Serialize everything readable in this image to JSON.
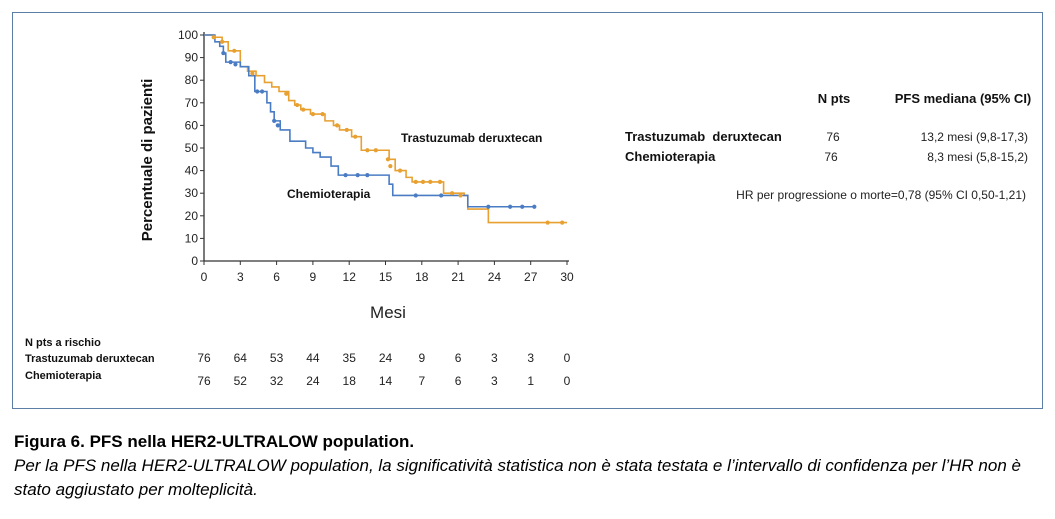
{
  "chart_data": {
    "type": "line",
    "chart_subtype": "kaplan-meier",
    "ylabel": "Percentuale di pazienti",
    "xlabel": "Mesi",
    "xlim": [
      0,
      30
    ],
    "ylim": [
      0,
      100
    ],
    "x_ticks": [
      "0",
      "3",
      "6",
      "9",
      "12",
      "15",
      "18",
      "21",
      "24",
      "27",
      "30"
    ],
    "y_ticks": [
      "0",
      "10",
      "20",
      "30",
      "40",
      "50",
      "60",
      "70",
      "80",
      "90",
      "100"
    ],
    "colors": {
      "Trastuzumab deruxtecan": "#e8a030",
      "Chemioterapia": "#4a7cc4",
      "axis": "#333333"
    },
    "series": [
      {
        "name": "Trastuzumab deruxtecan",
        "steps": [
          [
            0,
            100
          ],
          [
            0.8,
            99
          ],
          [
            1.5,
            97
          ],
          [
            2,
            93
          ],
          [
            3,
            86
          ],
          [
            3.6,
            84
          ],
          [
            4.3,
            82
          ],
          [
            5,
            79
          ],
          [
            5.6,
            77
          ],
          [
            6.2,
            75
          ],
          [
            7,
            71
          ],
          [
            7.5,
            69
          ],
          [
            8,
            67
          ],
          [
            8.8,
            65
          ],
          [
            10,
            62
          ],
          [
            10.7,
            60
          ],
          [
            11.2,
            58
          ],
          [
            12.2,
            55
          ],
          [
            13,
            49
          ],
          [
            15,
            49
          ],
          [
            15.3,
            45
          ],
          [
            15.8,
            40
          ],
          [
            16.7,
            37
          ],
          [
            17.2,
            35
          ],
          [
            19.8,
            30
          ],
          [
            21.5,
            29
          ],
          [
            21.8,
            23
          ],
          [
            23.5,
            17
          ],
          [
            30,
            17
          ]
        ],
        "censored": [
          [
            0.8,
            99
          ],
          [
            1.5,
            97
          ],
          [
            2.5,
            93
          ],
          [
            4,
            83
          ],
          [
            6.8,
            74
          ],
          [
            7.7,
            69
          ],
          [
            8.2,
            67
          ],
          [
            9,
            65
          ],
          [
            9.8,
            65
          ],
          [
            11,
            60
          ],
          [
            11.8,
            58
          ],
          [
            12.5,
            55
          ],
          [
            13.5,
            49
          ],
          [
            14.2,
            49
          ],
          [
            15.2,
            45
          ],
          [
            15.4,
            42
          ],
          [
            16.2,
            40
          ],
          [
            17.5,
            35
          ],
          [
            18.1,
            35
          ],
          [
            18.7,
            35
          ],
          [
            19.5,
            35
          ],
          [
            20.5,
            30
          ],
          [
            21.2,
            29
          ],
          [
            28.4,
            17
          ],
          [
            29.6,
            17
          ]
        ]
      },
      {
        "name": "Chemioterapia",
        "steps": [
          [
            0,
            100
          ],
          [
            0.9,
            97
          ],
          [
            1.3,
            95
          ],
          [
            1.6,
            92
          ],
          [
            1.8,
            88
          ],
          [
            3,
            86
          ],
          [
            3.7,
            82
          ],
          [
            4.2,
            75
          ],
          [
            5.2,
            70
          ],
          [
            5.5,
            66
          ],
          [
            5.8,
            62
          ],
          [
            6.3,
            58
          ],
          [
            7.1,
            53
          ],
          [
            8.4,
            50
          ],
          [
            9,
            48
          ],
          [
            9.6,
            46
          ],
          [
            10.5,
            42
          ],
          [
            11.1,
            38
          ],
          [
            13.8,
            38
          ],
          [
            15.3,
            34
          ],
          [
            15.6,
            29
          ],
          [
            21.6,
            29
          ],
          [
            21.8,
            24
          ],
          [
            27.3,
            24
          ]
        ],
        "censored": [
          [
            1.6,
            92
          ],
          [
            2.2,
            88
          ],
          [
            2.6,
            87
          ],
          [
            4.4,
            75
          ],
          [
            4.8,
            75
          ],
          [
            5.8,
            62
          ],
          [
            6.1,
            60
          ],
          [
            11.7,
            38
          ],
          [
            12.7,
            38
          ],
          [
            13.5,
            38
          ],
          [
            17.5,
            29
          ],
          [
            19.6,
            29
          ],
          [
            23.5,
            24
          ],
          [
            25.3,
            24
          ],
          [
            26.3,
            24
          ],
          [
            27.3,
            24
          ]
        ]
      }
    ],
    "curve_labels": [
      "Trastuzumab deruxtecan",
      "Chemioterapia"
    ]
  },
  "summary_table": {
    "headers": [
      "N pts",
      "PFS mediana (95% CI)"
    ],
    "rows": [
      {
        "label": "Trastuzumab  deruxtecan",
        "n": "76",
        "pfs": "13,2 mesi (9,8-17,3)"
      },
      {
        "label": "Chemioterapia",
        "n": "76",
        "pfs": "8,3 mesi (5,8-15,2)"
      }
    ],
    "hr": "HR per progressione o morte=0,78 (95% CI 0,50-1,21)"
  },
  "risk_table": {
    "title": "N pts a rischio",
    "rows": [
      {
        "label": "Trastuzumab deruxtecan",
        "values": [
          "76",
          "64",
          "53",
          "44",
          "35",
          "24",
          "9",
          "6",
          "3",
          "3",
          "0"
        ]
      },
      {
        "label": "Chemioterapia",
        "values": [
          "76",
          "52",
          "32",
          "24",
          "18",
          "14",
          "7",
          "6",
          "3",
          "1",
          "0"
        ]
      }
    ]
  },
  "caption": {
    "title": "Figura 6. PFS nella HER2-ULTRALOW population.",
    "text": "Per la PFS nella HER2-ULTRALOW population, la significatività statistica non è stata testata e l’intervallo di confidenza per l’HR non è stato aggiustato per molteplicità."
  }
}
